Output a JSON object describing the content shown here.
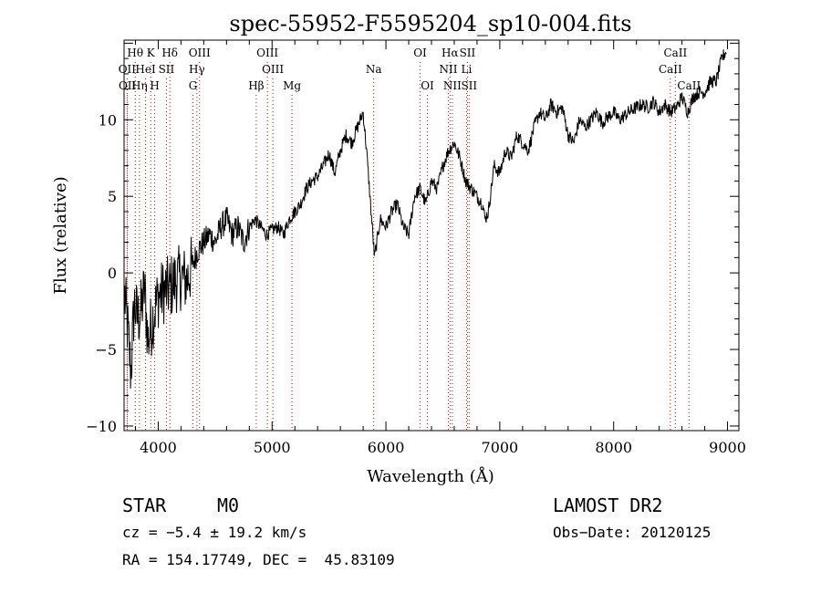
{
  "chart_data": {
    "type": "line",
    "title": "spec-55952-F5595204_sp10-004.fits",
    "xlabel": "Wavelength (Å)",
    "ylabel": "Flux (relative)",
    "xlim": [
      3700,
      9100
    ],
    "ylim": [
      -10.3,
      15.2
    ],
    "xticks": [
      4000,
      5000,
      6000,
      7000,
      8000,
      9000
    ],
    "yticks": [
      -10,
      -5,
      0,
      5,
      10
    ],
    "grid": false,
    "line_color": "#000000",
    "marker_color": "#cc0000",
    "lines": [
      {
        "label": "Hθ",
        "wavelength": 3798,
        "row": 0
      },
      {
        "label": "K",
        "wavelength": 3934,
        "row": 0
      },
      {
        "label": "Hδ",
        "wavelength": 4102,
        "row": 0
      },
      {
        "label": "OIII",
        "wavelength": 4363,
        "row": 0
      },
      {
        "label": "OIII",
        "wavelength": 4959,
        "row": 0
      },
      {
        "label": "OI",
        "wavelength": 6300,
        "row": 0
      },
      {
        "label": "Hα",
        "wavelength": 6563,
        "row": 0
      },
      {
        "label": "SII",
        "wavelength": 6716,
        "row": 0
      },
      {
        "label": "CaII",
        "wavelength": 8542,
        "row": 0
      },
      {
        "label": "OII",
        "wavelength": 3727,
        "row": 1
      },
      {
        "label": "HeI",
        "wavelength": 3889,
        "row": 1
      },
      {
        "label": "SII",
        "wavelength": 4072,
        "row": 1
      },
      {
        "label": "Hγ",
        "wavelength": 4340,
        "row": 1
      },
      {
        "label": "OIII",
        "wavelength": 5007,
        "row": 1
      },
      {
        "label": "Na",
        "wavelength": 5893,
        "row": 1
      },
      {
        "label": "NII",
        "wavelength": 6548,
        "row": 1
      },
      {
        "label": "Li",
        "wavelength": 6708,
        "row": 1
      },
      {
        "label": "CaII",
        "wavelength": 8498,
        "row": 1
      },
      {
        "label": "OII",
        "wavelength": 3729,
        "row": 2
      },
      {
        "label": "Hη",
        "wavelength": 3835,
        "row": 2
      },
      {
        "label": "H",
        "wavelength": 3969,
        "row": 2
      },
      {
        "label": "G",
        "wavelength": 4305,
        "row": 2
      },
      {
        "label": "Hβ",
        "wavelength": 4861,
        "row": 2
      },
      {
        "label": "Mg",
        "wavelength": 5175,
        "row": 2
      },
      {
        "label": "OI",
        "wavelength": 6364,
        "row": 2
      },
      {
        "label": "NII",
        "wavelength": 6583,
        "row": 2
      },
      {
        "label": "SII",
        "wavelength": 6731,
        "row": 2
      },
      {
        "label": "CaII",
        "wavelength": 8662,
        "row": 2
      }
    ],
    "series": [
      {
        "x": [
          3705,
          3730,
          3760,
          3790,
          3820,
          3850,
          3880,
          3910,
          3950,
          4000,
          4050,
          4100,
          4150,
          4200,
          4250,
          4300,
          4350,
          4400,
          4450,
          4500,
          4550,
          4600,
          4650,
          4700,
          4750,
          4800,
          4850,
          4900,
          4950,
          5000,
          5050,
          5100,
          5150,
          5200,
          5250,
          5300,
          5350,
          5400,
          5450,
          5500,
          5550,
          5600,
          5650,
          5700,
          5750,
          5800,
          5830,
          5860,
          5880,
          5900,
          5920,
          5950,
          6000,
          6050,
          6100,
          6150,
          6200,
          6250,
          6300,
          6350,
          6400,
          6450,
          6500,
          6550,
          6600,
          6650,
          6700,
          6750,
          6800,
          6850,
          6870,
          6900,
          6950,
          7000,
          7050,
          7100,
          7150,
          7200,
          7250,
          7300,
          7350,
          7400,
          7450,
          7500,
          7550,
          7600,
          7650,
          7700,
          7750,
          7800,
          7850,
          7900,
          7950,
          8000,
          8050,
          8100,
          8150,
          8200,
          8250,
          8300,
          8350,
          8400,
          8450,
          8500,
          8550,
          8600,
          8650,
          8700,
          8750,
          8800,
          8850,
          8900,
          8950,
          8990
        ],
        "y": [
          -1.5,
          -3.5,
          -6.5,
          -2.0,
          -3.0,
          -2.5,
          -1.0,
          -4.5,
          -3.0,
          -1.5,
          -1.2,
          -1.0,
          -0.5,
          -0.3,
          -0.5,
          0.5,
          1.5,
          2.0,
          2.5,
          2.0,
          3.0,
          3.5,
          2.5,
          3.0,
          2.0,
          3.0,
          3.5,
          3.0,
          2.5,
          2.8,
          3.0,
          2.5,
          3.5,
          4.0,
          4.5,
          5.5,
          6.0,
          6.3,
          7.0,
          7.8,
          6.5,
          8.0,
          9.0,
          8.5,
          9.5,
          10.5,
          8.0,
          5.0,
          3.0,
          1.0,
          2.0,
          3.5,
          3.0,
          4.0,
          4.5,
          3.0,
          2.5,
          5.0,
          5.5,
          4.5,
          6.0,
          5.5,
          7.0,
          8.0,
          8.5,
          7.5,
          6.0,
          5.5,
          5.0,
          4.5,
          3.5,
          4.0,
          7.0,
          6.5,
          8.0,
          7.5,
          9.0,
          8.5,
          8.0,
          9.5,
          10.5,
          10.0,
          11.0,
          10.5,
          10.8,
          9.0,
          8.5,
          10.0,
          9.5,
          10.0,
          10.5,
          9.8,
          10.2,
          10.5,
          10.0,
          10.3,
          10.6,
          10.8,
          11.0,
          10.8,
          11.2,
          10.5,
          11.0,
          10.5,
          10.8,
          11.5,
          10.5,
          11.5,
          11.8,
          11.8,
          12.5,
          12.5,
          14.0,
          14.5
        ]
      }
    ]
  },
  "info": {
    "object_type": "STAR",
    "subclass": "M0",
    "survey": "LAMOST DR2",
    "cz": "cz = −5.4 ± 19.2 km/s",
    "obs_date": "Obs−Date: 20120125",
    "coords": "RA = 154.17749, DEC =  45.83109"
  }
}
